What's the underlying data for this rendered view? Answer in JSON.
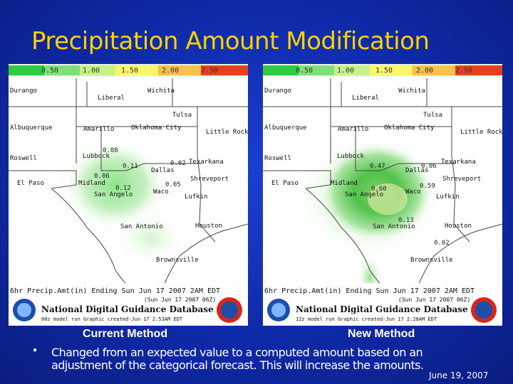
{
  "slide": {
    "title": "Precipitation Amount Modification",
    "bullet": "Changed from an expected value to a computed amount based on an adjustment of the categorical forecast.  This will increase the amounts.",
    "date": "June 19, 2007"
  },
  "colors": {
    "background": "#0f2aa8",
    "title": "#ffd200",
    "text": "#ffffff"
  },
  "maps": [
    {
      "caption": "Current Method",
      "scale_labels": [
        "0.50",
        "1.00",
        "1.50",
        "2.00",
        "2.50"
      ],
      "scale_colors": [
        "#2ecc40",
        "#7fe07a",
        "#c8f088",
        "#fff56a",
        "#f9c04a",
        "#e8401e"
      ],
      "cities": [
        "Durango",
        "Liberal",
        "Wichita",
        "Tulsa",
        "Albuquerque",
        "Amarillo",
        "Oklahoma City",
        "Little Rock",
        "Lubbock",
        "Roswell",
        "Texarkana",
        "Dallas",
        "Shreveport",
        "El Paso",
        "Midland",
        "San Angelo",
        "Waco",
        "Lufkin",
        "San Antonio",
        "Houston",
        "Brownsville"
      ],
      "values": [
        "0.08",
        "0.11",
        "0.02",
        "0.06",
        "0.12",
        "0.05"
      ],
      "footer": "6hr Precip.Amt(in) Ending Sun Jun 17 2007  2AM EDT",
      "footer_sub": "(Sun Jun 17 2007 06Z)",
      "database": "National Digital Guidance Database",
      "model_line": "00z model run    Graphic created-Jun 17  2:53AM EDT"
    },
    {
      "caption": "New Method",
      "scale_labels": [
        "0.50",
        "1.00",
        "1.50",
        "2.00",
        "2.50"
      ],
      "scale_colors": [
        "#2ecc40",
        "#7fe07a",
        "#c8f088",
        "#fff56a",
        "#f9c04a",
        "#e8401e"
      ],
      "cities": [
        "Durango",
        "Liberal",
        "Wichita",
        "Tulsa",
        "Albuquerque",
        "Amarillo",
        "Oklahoma City",
        "Little Rock",
        "Lubbock",
        "Roswell",
        "Texarkana",
        "Dallas",
        "Shreveport",
        "El Paso",
        "Midland",
        "San Angelo",
        "Waco",
        "Lufkin",
        "San Antonio",
        "Houston",
        "Brownsville"
      ],
      "values": [
        "0.47",
        "0.06",
        "0.60",
        "0.59",
        "0.13",
        "0.02"
      ],
      "footer": "6hr Precip.Amt(in) Ending Sun Jun 17 2007  2AM EDT",
      "footer_sub": "(Sun Jun 17 2007 06Z)",
      "database": "National Digital Guidance Database",
      "model_line": "12z model run    Graphic created-Jun 17  2:28AM EDT"
    }
  ]
}
